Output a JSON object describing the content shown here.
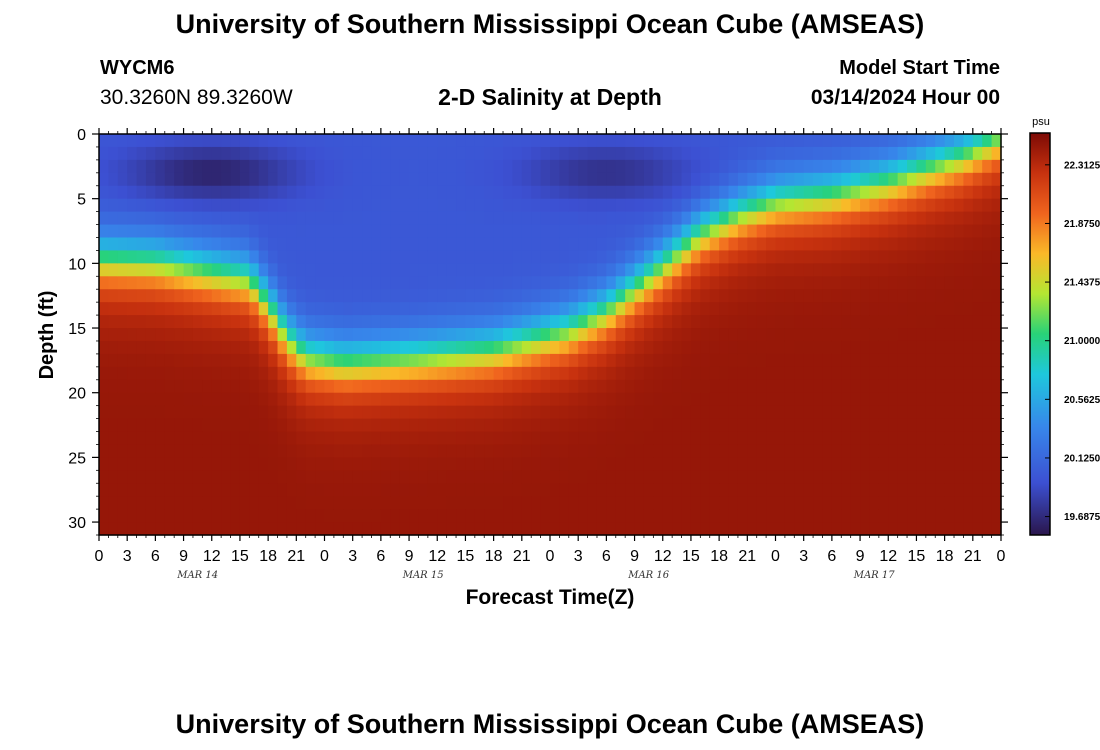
{
  "header": {
    "title": "University of Southern Mississippi Ocean Cube (AMSEAS)",
    "station_id": "WYCM6",
    "coordinates": "30.3260N  89.3260W",
    "subtitle": "2-D Salinity at Depth",
    "model_start_label": "Model Start Time",
    "model_start_value": "03/14/2024 Hour 00"
  },
  "footer": {
    "title": "University of Southern Mississippi Ocean Cube (AMSEAS)"
  },
  "chart_data": {
    "type": "heatmap",
    "title": "2-D Salinity at Depth",
    "xlabel": "Forecast Time(Z)",
    "ylabel": "Depth (ft)",
    "x_hours_range": [
      0,
      96
    ],
    "x_tick_step_hours": 3,
    "x_tick_labels": [
      "0",
      "3",
      "6",
      "9",
      "12",
      "15",
      "18",
      "21",
      "0",
      "3",
      "6",
      "9",
      "12",
      "15",
      "18",
      "21",
      "0",
      "3",
      "6",
      "9",
      "12",
      "15",
      "18",
      "21",
      "0",
      "3",
      "6",
      "9",
      "12",
      "15",
      "18",
      "21",
      "0"
    ],
    "date_labels": [
      {
        "label": "MAR 14",
        "hour": 10.5
      },
      {
        "label": "MAR 15",
        "hour": 34.5
      },
      {
        "label": "MAR 16",
        "hour": 58.5
      },
      {
        "label": "MAR 17",
        "hour": 82.5
      }
    ],
    "y_depth_range_ft": [
      0,
      31
    ],
    "y_tick_values": [
      0,
      5,
      10,
      15,
      20,
      25,
      30
    ],
    "colorbar": {
      "unit": "psu",
      "range": [
        19.55,
        22.55
      ],
      "tick_values": [
        22.3125,
        21.875,
        21.4375,
        21.0,
        20.5625,
        20.125,
        19.6875
      ],
      "tick_labels": [
        "22.3125",
        "21.8750",
        "21.4375",
        "21.0000",
        "20.5625",
        "20.1250",
        "19.6875"
      ]
    },
    "halocline_depth_ft": {
      "hours": [
        0,
        6,
        12,
        16,
        18,
        20,
        22,
        26,
        34,
        42,
        50,
        54,
        60,
        64,
        68,
        72,
        78,
        84,
        88,
        92,
        96
      ],
      "depths": [
        10,
        10.2,
        11,
        11.5,
        13.5,
        16,
        17.5,
        18,
        17.6,
        17,
        15.5,
        14,
        10.5,
        8,
        6.5,
        5.5,
        5,
        4,
        3,
        2,
        0.5
      ]
    },
    "fresh_cores": [
      {
        "hour": 12,
        "depth_ft": 3,
        "salinity_psu": 19.6
      },
      {
        "hour": 54,
        "depth_ft": 3,
        "salinity_psu": 19.7
      }
    ],
    "bottom_salinity_psu": 22.45,
    "surface_salinity_psu": 20.0
  },
  "colors": {
    "background": "#ffffff",
    "text": "#000000"
  }
}
